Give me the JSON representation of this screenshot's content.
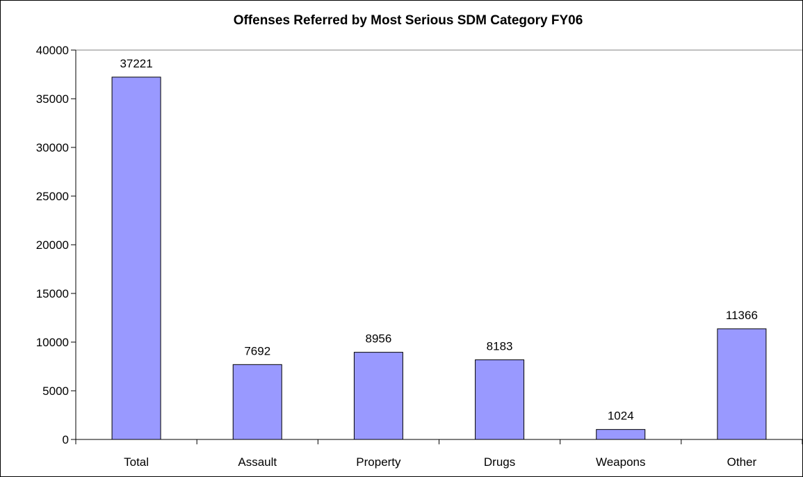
{
  "chart_data": {
    "type": "bar",
    "title": "Offenses Referred by Most Serious SDM Category FY06",
    "xlabel": "",
    "ylabel": "",
    "categories": [
      "Total",
      "Assault",
      "Property",
      "Drugs",
      "Weapons",
      "Other"
    ],
    "values": [
      37221,
      7692,
      8956,
      8183,
      1024,
      11366
    ],
    "data_labels": [
      "37221",
      "7692",
      "8956",
      "8183",
      "1024",
      "11366"
    ],
    "y_ticks": [
      0,
      5000,
      10000,
      15000,
      20000,
      25000,
      30000,
      35000,
      40000
    ],
    "y_tick_labels": [
      "0",
      "5000",
      "10000",
      "15000",
      "20000",
      "25000",
      "30000",
      "35000",
      "40000"
    ],
    "ylim": [
      0,
      40000
    ],
    "grid": false,
    "legend": "none",
    "colors": {
      "bar_fill": "#9999ff",
      "bar_stroke": "#000000",
      "axis": "#000000",
      "plot_top_border": "#808080"
    }
  }
}
